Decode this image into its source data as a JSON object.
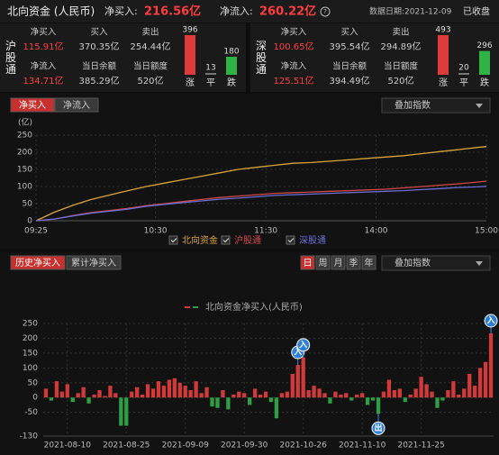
{
  "header": {
    "title": "北向资金 (人民币)",
    "net_buy_label": "净买入:",
    "net_buy": "216.56亿",
    "net_inflow_label": "净流入:",
    "net_inflow": "260.22亿",
    "date": "数据日期:2021-12-09",
    "status": "已收盘"
  },
  "panels": [
    {
      "name": "沪股通",
      "cells": [
        {
          "label": "净买入",
          "value": "115.91亿"
        },
        {
          "label": "买入",
          "value": "370.35亿"
        },
        {
          "label": "卖出",
          "value": "254.44亿"
        },
        {
          "label": "净流入",
          "value": "134.71亿"
        },
        {
          "label": "当日余额",
          "value": "385.29亿"
        },
        {
          "label": "当日额度",
          "value": "520亿"
        }
      ],
      "counts": [
        {
          "value": 396,
          "label": "涨",
          "color": "#e03b3b"
        },
        {
          "value": 13,
          "label": "平",
          "color": "#777777"
        },
        {
          "value": 180,
          "label": "跌",
          "color": "#2fb344"
        }
      ]
    },
    {
      "name": "深股通",
      "cells": [
        {
          "label": "净买入",
          "value": "100.65亿"
        },
        {
          "label": "买入",
          "value": "395.54亿"
        },
        {
          "label": "卖出",
          "value": "294.89亿"
        },
        {
          "label": "净流入",
          "value": "125.51亿"
        },
        {
          "label": "当日余额",
          "value": "394.49亿"
        },
        {
          "label": "当日额度",
          "value": "520亿"
        }
      ],
      "counts": [
        {
          "value": 493,
          "label": "涨",
          "color": "#e03b3b"
        },
        {
          "value": 20,
          "label": "平",
          "color": "#777777"
        },
        {
          "value": 296,
          "label": "跌",
          "color": "#2fb344"
        }
      ]
    }
  ],
  "controls": {
    "intraday_tabs": [
      "净买入",
      "净流入"
    ],
    "overlay": "叠加指数",
    "history_tabs": [
      "历史净买入",
      "累计净买入"
    ],
    "periods": [
      "日",
      "周",
      "月",
      "季",
      "年"
    ],
    "overlay2": "叠加指数"
  },
  "chart_data": [
    {
      "type": "line",
      "y_unit": "(亿)",
      "x": [
        0,
        10,
        20,
        30,
        40,
        50,
        60,
        70,
        80,
        90,
        100,
        110,
        120,
        130,
        140,
        150,
        160,
        170,
        180,
        190,
        200,
        210,
        220,
        230,
        240,
        245
      ],
      "xlim": [
        0,
        245
      ],
      "xticks": [
        {
          "value": 0,
          "label": "09:25"
        },
        {
          "value": 65,
          "label": "10:30"
        },
        {
          "value": 125,
          "label": "11:30"
        },
        {
          "value": 185,
          "label": "14:00"
        },
        {
          "value": 245,
          "label": "15:00"
        }
      ],
      "ylim": [
        0,
        250
      ],
      "yticks": [
        0,
        50,
        100,
        150,
        200,
        250
      ],
      "grid": true,
      "series": [
        {
          "name": "北向资金",
          "color": "#d9a53a",
          "values": [
            0,
            25,
            45,
            62,
            75,
            88,
            100,
            110,
            120,
            130,
            140,
            150,
            156,
            162,
            168,
            170,
            174,
            178,
            182,
            186,
            190,
            196,
            202,
            208,
            214,
            216.56
          ]
        },
        {
          "name": "沪股通",
          "color": "#d04848",
          "values": [
            0,
            5,
            15,
            24,
            30,
            36,
            44,
            50,
            56,
            62,
            68,
            72,
            76,
            80,
            82,
            84,
            86,
            88,
            90,
            92,
            96,
            100,
            104,
            108,
            113,
            115.91
          ]
        },
        {
          "name": "深股通",
          "color": "#6b6fd6",
          "values": [
            0,
            5,
            14,
            22,
            28,
            34,
            42,
            48,
            53,
            58,
            63,
            66,
            70,
            74,
            76,
            78,
            80,
            82,
            84,
            86,
            88,
            91,
            94,
            97,
            99,
            100.65
          ]
        }
      ]
    },
    {
      "type": "bar",
      "series_name": "北向资金净买入(人民币)",
      "color": "#d23a3a",
      "negative_color": "#2ea043",
      "categories": [
        null,
        null,
        null,
        null,
        "2021-08-10",
        null,
        null,
        null,
        null,
        null,
        null,
        null,
        null,
        null,
        null,
        "2021-08-25",
        null,
        null,
        null,
        null,
        null,
        null,
        null,
        null,
        null,
        null,
        "2021-09-09",
        null,
        null,
        null,
        null,
        null,
        null,
        null,
        null,
        null,
        null,
        "2021-09-30",
        null,
        null,
        null,
        null,
        null,
        null,
        null,
        null,
        null,
        null,
        "2021-10-26",
        null,
        null,
        null,
        null,
        null,
        null,
        null,
        null,
        null,
        null,
        "2021-11-10",
        null,
        null,
        null,
        null,
        null,
        null,
        null,
        null,
        null,
        null,
        "2021-11-25",
        null,
        null,
        null,
        null,
        null,
        null,
        null,
        null,
        null,
        null,
        null,
        null,
        null
      ],
      "values": [
        30,
        -10,
        55,
        20,
        45,
        -15,
        15,
        35,
        -20,
        10,
        25,
        5,
        40,
        15,
        -95,
        -95,
        20,
        35,
        10,
        45,
        30,
        55,
        40,
        60,
        65,
        50,
        40,
        25,
        55,
        15,
        35,
        -30,
        -35,
        25,
        -40,
        10,
        20,
        15,
        -25,
        30,
        10,
        20,
        -15,
        -70,
        15,
        20,
        80,
        110,
        135,
        25,
        40,
        30,
        15,
        -20,
        20,
        10,
        15,
        -10,
        10,
        15,
        -25,
        -10,
        -55,
        20,
        60,
        25,
        30,
        -15,
        10,
        30,
        70,
        45,
        20,
        -35,
        -10,
        25,
        55,
        10,
        30,
        80,
        40,
        100,
        120,
        216.56
      ],
      "markers": [
        null,
        null,
        null,
        null,
        null,
        null,
        null,
        null,
        null,
        null,
        null,
        null,
        null,
        null,
        null,
        null,
        null,
        null,
        null,
        null,
        null,
        null,
        null,
        null,
        null,
        null,
        null,
        null,
        null,
        null,
        null,
        null,
        null,
        null,
        null,
        null,
        null,
        null,
        null,
        null,
        null,
        null,
        null,
        null,
        null,
        null,
        null,
        "入",
        "入",
        null,
        null,
        null,
        null,
        null,
        null,
        null,
        null,
        null,
        null,
        null,
        null,
        null,
        "出",
        null,
        null,
        null,
        null,
        null,
        null,
        null,
        null,
        null,
        null,
        null,
        null,
        null,
        null,
        null,
        null,
        null,
        null,
        null,
        null,
        "入"
      ],
      "ylim": [
        -130,
        250
      ],
      "yticks": [
        250,
        200,
        150,
        100,
        50,
        0,
        -50,
        -130
      ],
      "grid": true
    }
  ]
}
